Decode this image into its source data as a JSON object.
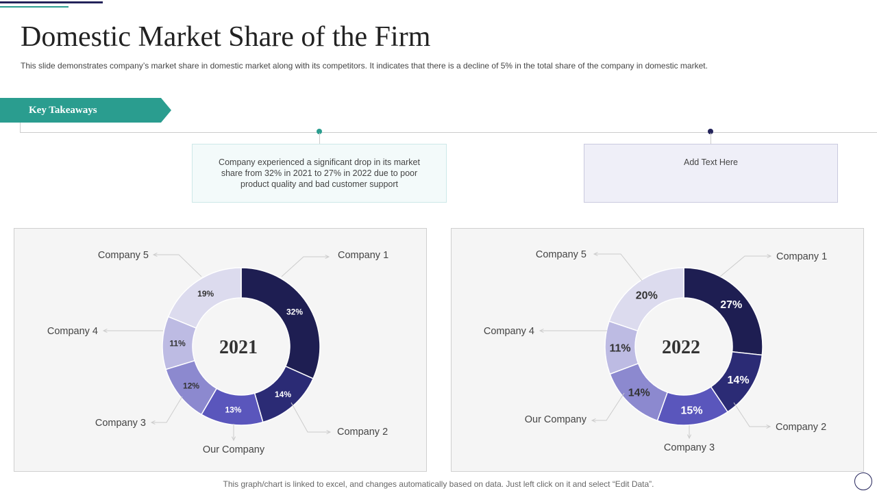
{
  "header": {
    "title": "Domestic Market Share of the Firm",
    "subtitle": "This slide demonstrates company’s market share in domestic market along with its competitors. It indicates that there is a decline of 5% in the total share of the company in domestic market."
  },
  "takeaways": {
    "label": "Key Takeaways",
    "box1": "Company experienced a significant drop in its market share from 32% in 2021 to 27% in 2022 due to poor product quality and bad customer support",
    "box2": "Add Text Here"
  },
  "footer": {
    "note": "This graph/chart is linked to excel,  and changes automatically based on data. Just left click on it and select “Edit Data”."
  },
  "colors": {
    "accent_teal": "#2a9d8f",
    "accent_navy": "#23235a"
  },
  "chart_data": [
    {
      "type": "pie",
      "center_label": "2021",
      "categories": [
        "Company 1",
        "Company 2",
        "Our Company",
        "Company 3",
        "Company 4",
        "Company 5"
      ],
      "values": [
        32,
        14,
        13,
        12,
        11,
        19
      ],
      "value_labels": [
        "32%",
        "14%",
        "13%",
        "12%",
        "11%",
        "19%"
      ],
      "colors": [
        "#1e1e52",
        "#2b2b75",
        "#5a56bc",
        "#8c89cf",
        "#bdbbe3",
        "#dcdbee"
      ]
    },
    {
      "type": "pie",
      "center_label": "2022",
      "categories": [
        "Company 1",
        "Company 2",
        "Company 3",
        "Our Company",
        "Company 4",
        "Company 5"
      ],
      "values": [
        27,
        14,
        15,
        14,
        11,
        20
      ],
      "value_labels": [
        "27%",
        "14%",
        "15%",
        "14%",
        "11%",
        "20%"
      ],
      "colors": [
        "#1e1e52",
        "#2b2b75",
        "#5a56bc",
        "#8c89cf",
        "#bdbbe3",
        "#dcdbee"
      ]
    }
  ]
}
